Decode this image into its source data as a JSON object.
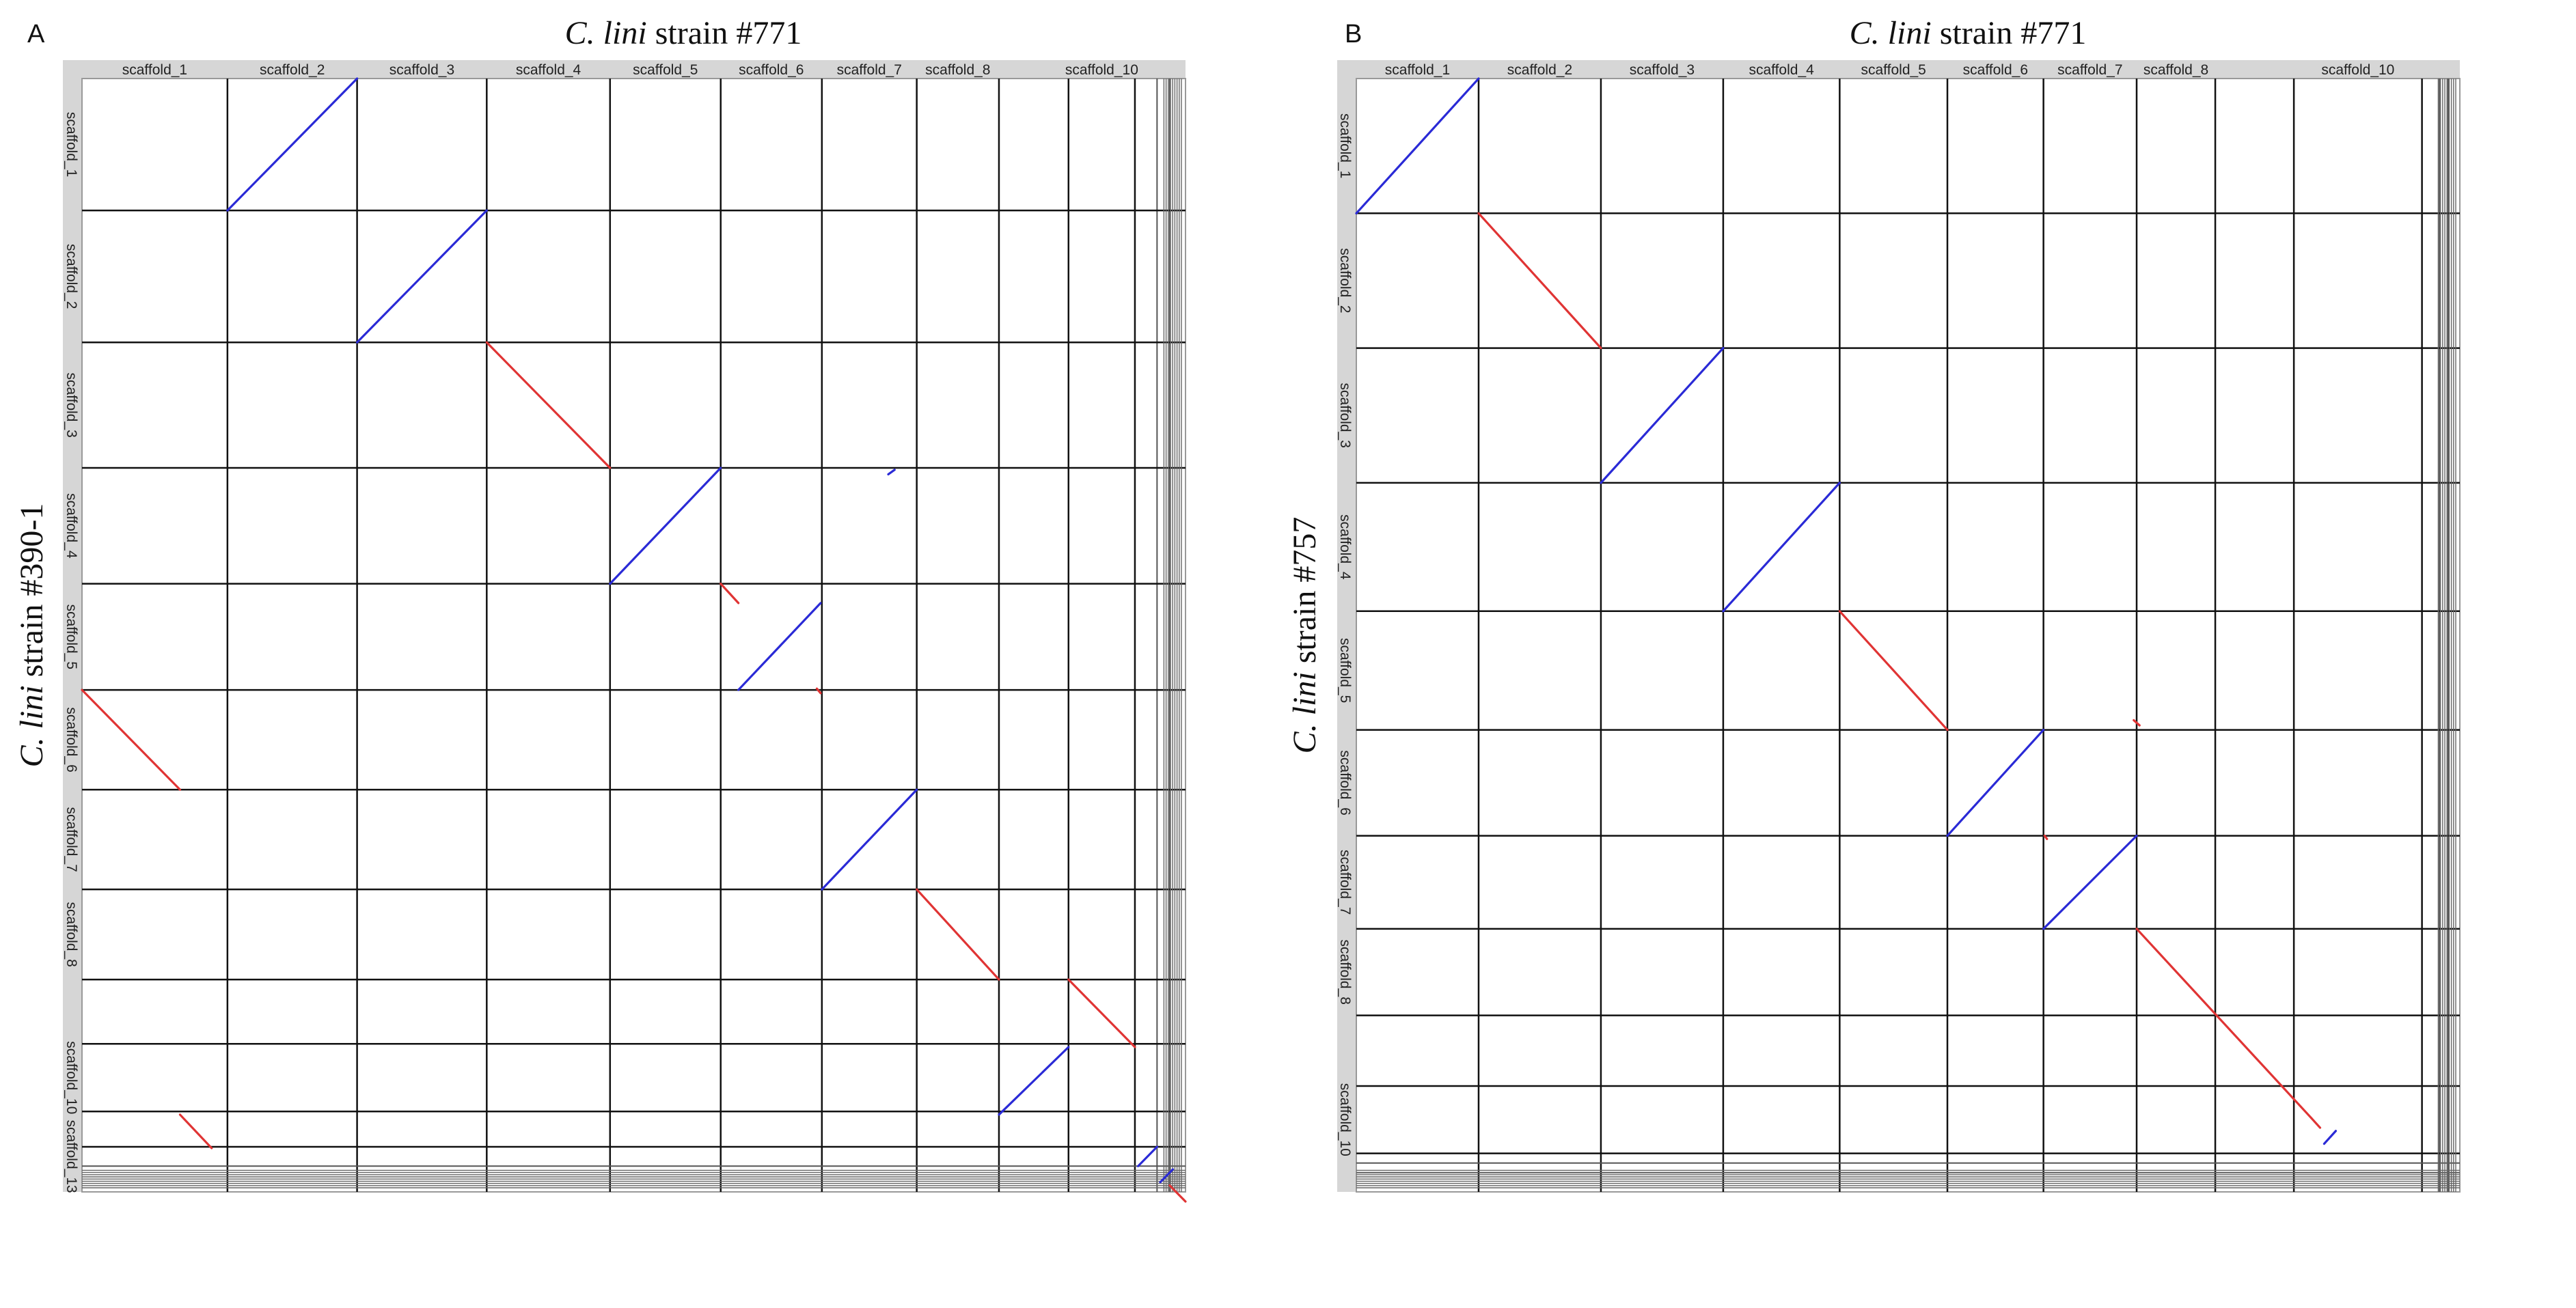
{
  "chart_data": [
    {
      "type": "scatter",
      "panel_label": "A",
      "title_italic": "C. lini",
      "title_rest": " strain #771",
      "ylabel_italic": "C. lini",
      "ylabel_rest": " strain #390-1",
      "x_scaffolds": [
        {
          "label": "scaffold_1",
          "length": 2.3
        },
        {
          "label": "scaffold_2",
          "length": 2.05
        },
        {
          "label": "scaffold_3",
          "length": 2.05
        },
        {
          "label": "scaffold_4",
          "length": 1.95
        },
        {
          "label": "scaffold_5",
          "length": 1.75
        },
        {
          "label": "scaffold_6",
          "length": 1.6
        },
        {
          "label": "scaffold_7",
          "length": 1.5
        },
        {
          "label": "scaffold_8",
          "length": 1.3
        },
        {
          "label": "",
          "length": 1.1
        },
        {
          "label": "scaffold_10",
          "length": 1.05
        },
        {
          "label": "",
          "length": 0.35
        },
        {
          "label": "",
          "length": 0.2
        },
        {
          "label": "",
          "length": 0.25
        }
      ],
      "y_scaffolds": [
        {
          "label": "scaffold_1",
          "length": 2.05
        },
        {
          "label": "scaffold_2",
          "length": 2.05
        },
        {
          "label": "scaffold_3",
          "length": 1.95
        },
        {
          "label": "scaffold_4",
          "length": 1.8
        },
        {
          "label": "scaffold_5",
          "length": 1.65
        },
        {
          "label": "scaffold_6",
          "length": 1.55
        },
        {
          "label": "scaffold_7",
          "length": 1.55
        },
        {
          "label": "scaffold_8",
          "length": 1.4
        },
        {
          "label": "",
          "length": 1.0
        },
        {
          "label": "scaffold_10",
          "length": 1.05
        },
        {
          "label": "",
          "length": 0.55
        },
        {
          "label": "scaffold_13",
          "length": 0.3
        },
        {
          "label": "",
          "length": 0.4
        }
      ],
      "alignments": [
        {
          "x1": 2.3,
          "y1": 2.05,
          "x2": 4.35,
          "y2": 0.0,
          "orientation": "forward"
        },
        {
          "x1": 4.35,
          "y1": 4.1,
          "x2": 6.4,
          "y2": 2.05,
          "orientation": "forward"
        },
        {
          "x1": 6.4,
          "y1": 4.1,
          "x2": 8.35,
          "y2": 6.05,
          "orientation": "reverse"
        },
        {
          "x1": 8.35,
          "y1": 7.85,
          "x2": 10.1,
          "y2": 6.05,
          "orientation": "forward"
        },
        {
          "x1": 10.1,
          "y1": 7.85,
          "x2": 10.38,
          "y2": 8.15,
          "orientation": "reverse"
        },
        {
          "x1": 10.38,
          "y1": 9.5,
          "x2": 11.68,
          "y2": 8.15,
          "orientation": "forward"
        },
        {
          "x1": 0.0,
          "y1": 9.5,
          "x2": 1.55,
          "y2": 11.05,
          "orientation": "reverse"
        },
        {
          "x1": 11.7,
          "y1": 12.6,
          "x2": 13.2,
          "y2": 11.05,
          "orientation": "forward"
        },
        {
          "x1": 13.2,
          "y1": 12.6,
          "x2": 14.5,
          "y2": 14.0,
          "orientation": "reverse"
        },
        {
          "x1": 15.6,
          "y1": 14.0,
          "x2": 16.65,
          "y2": 15.05,
          "orientation": "reverse"
        },
        {
          "x1": 14.5,
          "y1": 16.1,
          "x2": 15.6,
          "y2": 15.05,
          "orientation": "forward"
        },
        {
          "x1": 1.55,
          "y1": 16.1,
          "x2": 2.05,
          "y2": 16.62,
          "orientation": "reverse"
        },
        {
          "x1": 16.7,
          "y1": 16.9,
          "x2": 17.0,
          "y2": 16.6,
          "orientation": "forward"
        },
        {
          "x1": 17.05,
          "y1": 17.15,
          "x2": 17.25,
          "y2": 16.95,
          "orientation": "forward"
        },
        {
          "x1": 17.2,
          "y1": 17.2,
          "x2": 17.45,
          "y2": 17.45,
          "orientation": "reverse"
        },
        {
          "x1": 12.75,
          "y1": 6.15,
          "x2": 12.85,
          "y2": 6.08,
          "orientation": "forward"
        },
        {
          "x1": 11.62,
          "y1": 9.48,
          "x2": 11.68,
          "y2": 9.55,
          "orientation": "reverse"
        }
      ]
    },
    {
      "type": "scatter",
      "panel_label": "B",
      "title_italic": "C. lini",
      "title_rest": " strain #771",
      "ylabel_italic": "C. lini",
      "ylabel_rest": " strain #757",
      "x_scaffolds": [
        {
          "label": "scaffold_1",
          "length": 2.1
        },
        {
          "label": "scaffold_2",
          "length": 2.1
        },
        {
          "label": "scaffold_3",
          "length": 2.1
        },
        {
          "label": "scaffold_4",
          "length": 2.0
        },
        {
          "label": "scaffold_5",
          "length": 1.85
        },
        {
          "label": "scaffold_6",
          "length": 1.65
        },
        {
          "label": "scaffold_7",
          "length": 1.6
        },
        {
          "label": "scaffold_8",
          "length": 1.35
        },
        {
          "label": "",
          "length": 1.35
        },
        {
          "label": "scaffold_10",
          "length": 2.2
        },
        {
          "label": "",
          "length": 0.3
        },
        {
          "label": "",
          "length": 0.15
        },
        {
          "label": "",
          "length": 0.2
        }
      ],
      "y_scaffolds": [
        {
          "label": "scaffold_1",
          "length": 2.1
        },
        {
          "label": "scaffold_2",
          "length": 2.1
        },
        {
          "label": "scaffold_3",
          "length": 2.1
        },
        {
          "label": "scaffold_4",
          "length": 2.0
        },
        {
          "label": "scaffold_5",
          "length": 1.85
        },
        {
          "label": "scaffold_6",
          "length": 1.65
        },
        {
          "label": "scaffold_7",
          "length": 1.45
        },
        {
          "label": "scaffold_8",
          "length": 1.35
        },
        {
          "label": "",
          "length": 1.1
        },
        {
          "label": "scaffold_10",
          "length": 1.05
        },
        {
          "label": "",
          "length": 0.15
        },
        {
          "label": "",
          "length": 0.15
        },
        {
          "label": "",
          "length": 0.3
        }
      ],
      "alignments": [
        {
          "x1": 0.0,
          "y1": 2.1,
          "x2": 2.1,
          "y2": 0.0,
          "orientation": "forward"
        },
        {
          "x1": 2.1,
          "y1": 2.1,
          "x2": 4.2,
          "y2": 4.2,
          "orientation": "reverse"
        },
        {
          "x1": 4.2,
          "y1": 6.3,
          "x2": 6.3,
          "y2": 4.2,
          "orientation": "forward"
        },
        {
          "x1": 6.3,
          "y1": 8.3,
          "x2": 8.3,
          "y2": 6.3,
          "orientation": "forward"
        },
        {
          "x1": 8.3,
          "y1": 8.3,
          "x2": 10.15,
          "y2": 10.15,
          "orientation": "reverse"
        },
        {
          "x1": 10.15,
          "y1": 11.8,
          "x2": 11.8,
          "y2": 10.15,
          "orientation": "forward"
        },
        {
          "x1": 11.8,
          "y1": 13.25,
          "x2": 13.4,
          "y2": 11.8,
          "orientation": "forward"
        },
        {
          "x1": 13.4,
          "y1": 13.25,
          "x2": 16.4,
          "y2": 16.2,
          "orientation": "reverse"
        },
        {
          "x1": 16.4,
          "y1": 16.2,
          "x2": 16.55,
          "y2": 16.35,
          "orientation": "reverse"
        },
        {
          "x1": 16.62,
          "y1": 16.6,
          "x2": 16.82,
          "y2": 16.4,
          "orientation": "forward"
        },
        {
          "x1": 13.35,
          "y1": 10.0,
          "x2": 13.45,
          "y2": 10.08,
          "orientation": "reverse"
        },
        {
          "x1": 11.82,
          "y1": 11.8,
          "x2": 11.86,
          "y2": 11.85,
          "orientation": "reverse"
        }
      ]
    }
  ]
}
